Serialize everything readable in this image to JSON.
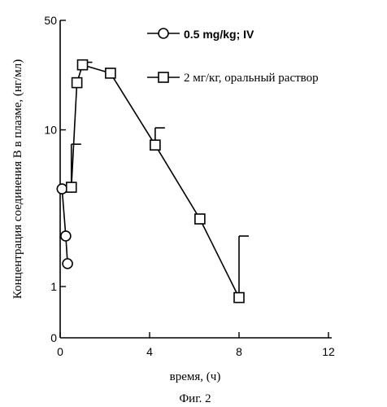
{
  "figure": {
    "caption": "Фиг. 2"
  },
  "chart_data": {
    "type": "line",
    "xlabel": "время, (ч)",
    "ylabel": "Концентрация соединения B в плазме, (нг/мл)",
    "x_ticks": [
      "0",
      "4",
      "8",
      "12"
    ],
    "x_ticks_values": [
      0,
      4,
      8,
      12
    ],
    "y_ticks": [
      "50",
      "10",
      "1",
      "0"
    ],
    "y_ticks_values": [
      50,
      10,
      1,
      0
    ],
    "y_scale": "log (with zero at the bottom)",
    "xlim": [
      0,
      12
    ],
    "ylim": [
      0,
      50
    ],
    "grid": false,
    "legend_position": "top-right",
    "series": [
      {
        "name": "0.5 mg/kg; IV",
        "marker": "circle",
        "x": [
          0.083,
          0.25,
          0.33
        ],
        "y": [
          4.2,
          2.1,
          1.4
        ]
      },
      {
        "name": "2 мг/кг, оральный раствор",
        "marker": "square",
        "x": [
          0.5,
          0.75,
          1.0,
          2.25,
          4.25,
          6.25,
          8.0
        ],
        "y": [
          4.3,
          20,
          26,
          23,
          8.0,
          2.7,
          0.85
        ],
        "error_high": [
          8.1,
          null,
          27,
          null,
          10.3,
          null,
          2.1
        ]
      }
    ]
  }
}
